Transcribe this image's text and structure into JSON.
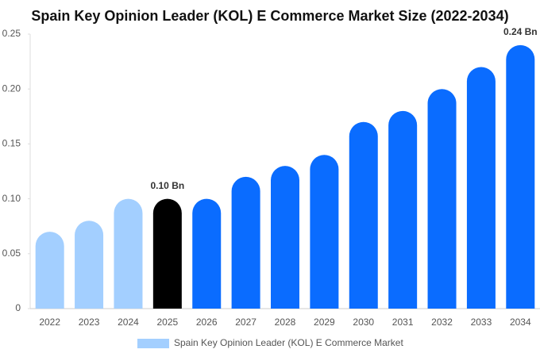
{
  "chart_data": {
    "type": "bar",
    "title": "Spain Key Opinion Leader (KOL) E Commerce Market Size (2022-2034)",
    "categories": [
      "2022",
      "2023",
      "2024",
      "2025",
      "2026",
      "2027",
      "2028",
      "2029",
      "2030",
      "2031",
      "2032",
      "2033",
      "2034"
    ],
    "series": [
      {
        "name": "Spain Key Opinion Leader (KOL) E Commerce Market",
        "color": "#a3cfff",
        "colors": [
          "#a3cfff",
          "#a3cfff",
          "#a3cfff",
          "#000000",
          "#0a6cff",
          "#0a6cff",
          "#0a6cff",
          "#0a6cff",
          "#0a6cff",
          "#0a6cff",
          "#0a6cff",
          "#0a6cff",
          "#0a6cff"
        ],
        "values": [
          0.07,
          0.08,
          0.1,
          0.1,
          0.1,
          0.12,
          0.13,
          0.14,
          0.17,
          0.18,
          0.2,
          0.22,
          0.24
        ],
        "value_labels": [
          null,
          null,
          null,
          "0.10 Bn",
          null,
          null,
          null,
          null,
          null,
          null,
          null,
          null,
          "0.24 Bn"
        ]
      }
    ],
    "ylim": [
      0,
      0.25
    ],
    "yticks": [
      0,
      0.05,
      {
        "value": 0.1,
        "label": "0.10"
      },
      0.15,
      {
        "value": 0.2,
        "label": "0.20"
      },
      0.25
    ],
    "grid": false
  }
}
